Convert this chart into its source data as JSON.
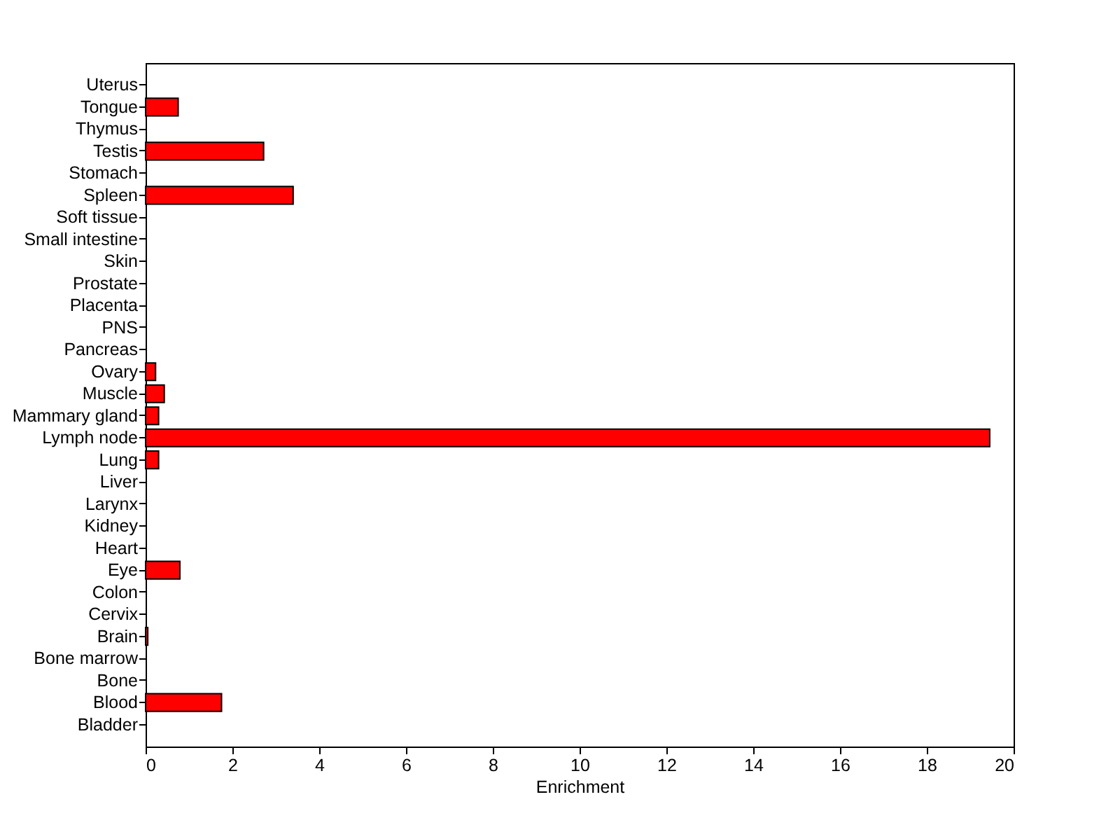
{
  "chart_data": {
    "type": "bar",
    "orientation": "horizontal",
    "xlabel": "Enrichment",
    "categories": [
      "Uterus",
      "Tongue",
      "Thymus",
      "Testis",
      "Stomach",
      "Spleen",
      "Soft tissue",
      "Small intestine",
      "Skin",
      "Prostate",
      "Placenta",
      "PNS",
      "Pancreas",
      "Ovary",
      "Muscle",
      "Mammary gland",
      "Lymph node",
      "Lung",
      "Liver",
      "Larynx",
      "Kidney",
      "Heart",
      "Eye",
      "Colon",
      "Cervix",
      "Brain",
      "Bone marrow",
      "Bone",
      "Blood",
      "Bladder"
    ],
    "values": [
      null,
      0.75,
      null,
      2.72,
      null,
      3.4,
      null,
      null,
      null,
      null,
      null,
      null,
      null,
      0.23,
      0.43,
      0.3,
      19.45,
      0.3,
      null,
      null,
      null,
      null,
      0.79,
      null,
      null,
      0.05,
      null,
      null,
      1.75,
      null
    ],
    "color": "#ff0000",
    "xlim": [
      0,
      20
    ],
    "xticks": [
      0,
      2,
      4,
      6,
      8,
      10,
      12,
      14,
      16,
      18,
      20
    ],
    "grid": false
  }
}
